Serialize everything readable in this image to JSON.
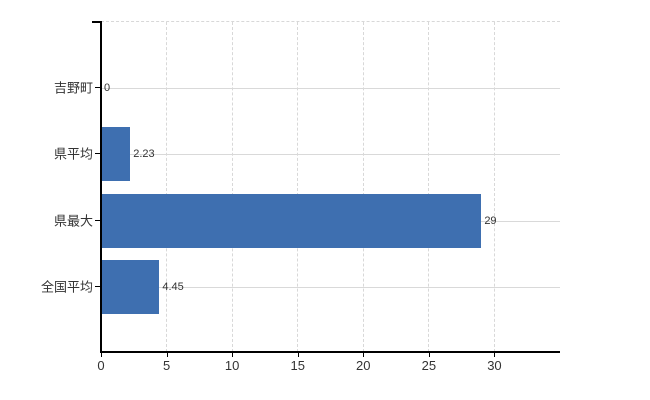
{
  "chart_data": {
    "type": "bar",
    "orientation": "horizontal",
    "categories": [
      "吉野町",
      "県平均",
      "県最大",
      "全国平均"
    ],
    "values": [
      0,
      2.23,
      29,
      4.45
    ],
    "value_labels": [
      "0",
      "2.23",
      "29",
      "4.45"
    ],
    "xlim": [
      0,
      35
    ],
    "x_ticks": [
      0,
      5,
      10,
      15,
      20,
      25,
      30
    ],
    "x_tick_labels": [
      "0",
      "5",
      "10",
      "15",
      "20",
      "25",
      "30"
    ],
    "grid": true,
    "legend": false,
    "colors": {
      "bar": "#3e6fb0",
      "axis": "#000000",
      "gridline": "#d9d9d9",
      "text": "#333333",
      "background": "#ffffff"
    }
  }
}
